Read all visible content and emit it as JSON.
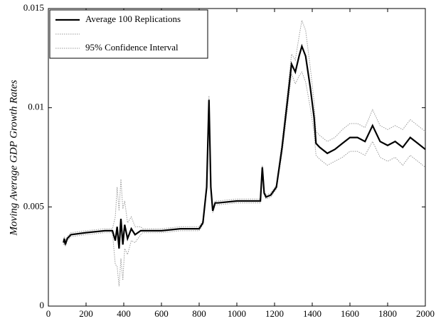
{
  "chart_data": {
    "type": "line",
    "y_label": "Moving Average GDP Growth Rates",
    "x": [
      80,
      85,
      90,
      100,
      120,
      200,
      300,
      340,
      355,
      365,
      375,
      385,
      395,
      405,
      420,
      440,
      460,
      490,
      500,
      600,
      700,
      800,
      820,
      840,
      852,
      862,
      872,
      885,
      900,
      1000,
      1100,
      1125,
      1135,
      1145,
      1155,
      1180,
      1210,
      1240,
      1270,
      1290,
      1310,
      1330,
      1345,
      1365,
      1390,
      1410,
      1420,
      1440,
      1480,
      1520,
      1560,
      1600,
      1640,
      1680,
      1720,
      1760,
      1800,
      1840,
      1880,
      1920,
      1960,
      2000
    ],
    "series": [
      {
        "name": "Average 100 Replications",
        "color": "#000000",
        "dash": false,
        "values": [
          0.0032,
          0.0034,
          0.0031,
          0.0034,
          0.0036,
          0.0037,
          0.0038,
          0.0038,
          0.0033,
          0.004,
          0.0029,
          0.0044,
          0.0031,
          0.0041,
          0.0034,
          0.0039,
          0.0036,
          0.0038,
          0.0038,
          0.0038,
          0.0039,
          0.0039,
          0.0042,
          0.006,
          0.0104,
          0.006,
          0.0048,
          0.0052,
          0.0052,
          0.0053,
          0.0053,
          0.0053,
          0.007,
          0.0057,
          0.0055,
          0.0056,
          0.006,
          0.008,
          0.0105,
          0.0122,
          0.0118,
          0.0126,
          0.0131,
          0.0126,
          0.011,
          0.0095,
          0.0082,
          0.008,
          0.0077,
          0.0079,
          0.0082,
          0.0085,
          0.0085,
          0.0083,
          0.0091,
          0.0083,
          0.0081,
          0.0083,
          0.008,
          0.0085,
          0.0082,
          0.0079
        ]
      },
      {
        "color": "#9a9a9a",
        "dash": true,
        "values": [
          0.0033,
          0.0035,
          0.0032,
          0.0035,
          0.0037,
          0.0038,
          0.0039,
          0.0039,
          0.0045,
          0.006,
          0.0048,
          0.0064,
          0.0049,
          0.0053,
          0.0042,
          0.0045,
          0.004,
          0.004,
          0.0039,
          0.0039,
          0.004,
          0.004,
          0.0043,
          0.0061,
          0.0106,
          0.0061,
          0.0049,
          0.0053,
          0.0053,
          0.0054,
          0.0054,
          0.0054,
          0.0071,
          0.0058,
          0.0056,
          0.0057,
          0.0061,
          0.0083,
          0.0109,
          0.0127,
          0.0124,
          0.0136,
          0.0144,
          0.0139,
          0.012,
          0.0103,
          0.0088,
          0.0086,
          0.0083,
          0.0085,
          0.0089,
          0.0092,
          0.0092,
          0.009,
          0.0099,
          0.0091,
          0.0089,
          0.0091,
          0.0089,
          0.0094,
          0.0091,
          0.0088
        ]
      },
      {
        "name": "95% Confidence Interval",
        "color": "#9a9a9a",
        "dash": true,
        "values": [
          0.0031,
          0.0033,
          0.003,
          0.0033,
          0.0035,
          0.0036,
          0.0037,
          0.0037,
          0.0021,
          0.002,
          0.001,
          0.0024,
          0.0013,
          0.0029,
          0.0026,
          0.0033,
          0.0032,
          0.0036,
          0.0037,
          0.0037,
          0.0038,
          0.0038,
          0.0041,
          0.0059,
          0.0102,
          0.0059,
          0.0047,
          0.0051,
          0.0051,
          0.0052,
          0.0052,
          0.0052,
          0.0069,
          0.0056,
          0.0054,
          0.0055,
          0.0059,
          0.0077,
          0.0101,
          0.0117,
          0.0112,
          0.0116,
          0.0118,
          0.0113,
          0.01,
          0.0087,
          0.0076,
          0.0074,
          0.0071,
          0.0073,
          0.0075,
          0.0078,
          0.0078,
          0.0076,
          0.0083,
          0.0075,
          0.0073,
          0.0075,
          0.0071,
          0.0076,
          0.0073,
          0.007
        ]
      }
    ],
    "xlim": [
      0,
      2000
    ],
    "xticks": [
      0,
      200,
      400,
      600,
      800,
      1000,
      1200,
      1400,
      1600,
      1800,
      2000
    ],
    "ylim": [
      0,
      0.015
    ],
    "yticks": [
      0,
      0.005,
      0.01,
      0.015
    ],
    "legend": "top-left"
  }
}
